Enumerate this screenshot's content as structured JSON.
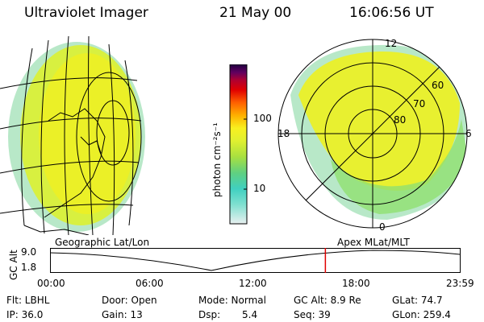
{
  "header": {
    "instrument": "Ultraviolet Imager",
    "date": "21 May 00",
    "time": "16:06:56 UT"
  },
  "colorbar": {
    "unit_label": "photon cm⁻²s⁻¹",
    "ticks": [
      "100",
      "10"
    ],
    "colors": [
      "#e8f0f0",
      "#80e0d0",
      "#40d0c0",
      "#60d080",
      "#a8e040",
      "#e0f030",
      "#f8f020",
      "#ffb000",
      "#ff6000",
      "#e00000",
      "#b00030",
      "#600060",
      "#200040"
    ]
  },
  "left_panel": {
    "label": "Geographic Lat/Lon"
  },
  "right_panel": {
    "label": "Apex MLat/MLT",
    "lat_labels": [
      "80",
      "70",
      "60"
    ],
    "mlt_labels": [
      "12",
      "18",
      "6",
      "0"
    ]
  },
  "altitude_plot": {
    "ylabel": "GC Alt",
    "yticks": [
      "9.0",
      "1.8"
    ],
    "xticks": [
      "00:00",
      "06:00",
      "12:00",
      "18:00",
      "23:59"
    ],
    "current_time_fraction": 0.671
  },
  "info": {
    "flt": "Flt: LBHL",
    "ip": "IP: 36.0",
    "door": "Door: Open",
    "gain": "Gain: 13",
    "mode": "Mode: Normal",
    "dsp_label": "Dsp:",
    "dsp_value": "5.4",
    "gc_alt": "GC Alt: 8.9 Re",
    "seq": "Seq: 39",
    "glat": "GLat:  74.7",
    "glon": "GLon: 259.4"
  }
}
